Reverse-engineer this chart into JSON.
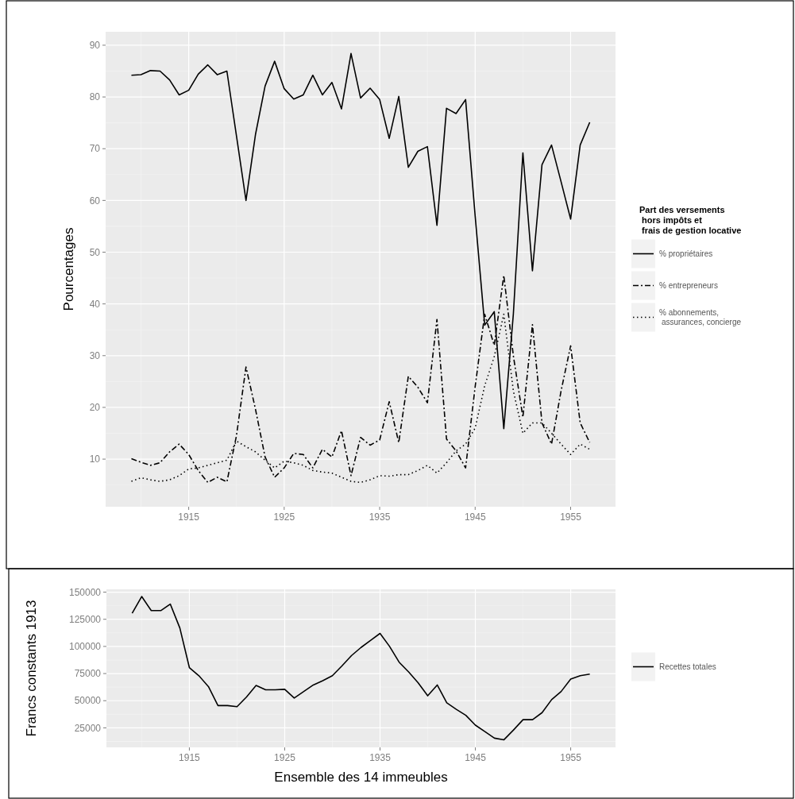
{
  "chart_data": [
    {
      "type": "line",
      "ylabel": "Pourcentages",
      "legend_title": "Part des versements\n hors impôts et\n frais de gestion locative",
      "legend": "right",
      "grid": true,
      "x": [
        1909,
        1910,
        1911,
        1912,
        1913,
        1914,
        1915,
        1916,
        1917,
        1918,
        1919,
        1920,
        1921,
        1922,
        1923,
        1924,
        1925,
        1926,
        1927,
        1928,
        1929,
        1930,
        1931,
        1932,
        1933,
        1934,
        1935,
        1936,
        1937,
        1938,
        1939,
        1940,
        1941,
        1942,
        1943,
        1944,
        1945,
        1946,
        1947,
        1948,
        1949,
        1950,
        1951,
        1952,
        1953,
        1954,
        1955,
        1956,
        1957
      ],
      "xlim": [
        1906.3,
        1959.7
      ],
      "xticks": [
        1915,
        1925,
        1935,
        1945,
        1955
      ],
      "ylim": [
        0.8,
        92.6
      ],
      "yticks": [
        10,
        20,
        30,
        40,
        50,
        60,
        70,
        80,
        90
      ],
      "series": [
        {
          "name": "% propriétaires",
          "color": "#000000",
          "line_style": "solid",
          "values": [
            84.2,
            84.3,
            85.1,
            85.0,
            83.3,
            80.4,
            81.3,
            84.4,
            86.2,
            84.3,
            85.0,
            72.5,
            60.0,
            72.8,
            82.1,
            86.9,
            81.6,
            79.6,
            80.4,
            84.2,
            80.4,
            82.8,
            77.7,
            88.4,
            79.8,
            81.7,
            79.5,
            72.0,
            80.1,
            66.4,
            69.5,
            70.4,
            55.2,
            77.8,
            76.8,
            79.5,
            57.0,
            35.9,
            38.5,
            15.9,
            38.0,
            69.2,
            46.4,
            66.9,
            70.7,
            63.6,
            56.4,
            70.7,
            75.1
          ]
        },
        {
          "name": "% entrepreneurs",
          "color": "#000000",
          "line_style": "dashed",
          "values": [
            10.1,
            9.4,
            8.8,
            9.3,
            11.4,
            12.9,
            10.9,
            7.8,
            5.5,
            6.5,
            5.6,
            14.5,
            27.8,
            19.6,
            10.4,
            6.5,
            8.3,
            11.1,
            10.9,
            8.3,
            11.9,
            10.4,
            15.5,
            6.8,
            14.2,
            12.7,
            13.7,
            21.1,
            13.2,
            26.0,
            23.9,
            20.9,
            37.0,
            13.9,
            11.6,
            8.3,
            24.0,
            38.0,
            32.0,
            45.5,
            30.0,
            18.1,
            36.0,
            17.0,
            12.9,
            23.2,
            31.9,
            17.0,
            13.2
          ]
        },
        {
          "name": "% abonnements,\nassurances, concierge",
          "color": "#000000",
          "line_style": "dotted",
          "values": [
            5.7,
            6.4,
            6.0,
            5.7,
            6.0,
            6.8,
            8.1,
            8.3,
            8.8,
            9.3,
            9.8,
            13.5,
            12.4,
            11.4,
            9.8,
            8.3,
            9.6,
            9.3,
            8.8,
            7.8,
            7.5,
            7.3,
            6.5,
            5.7,
            5.5,
            6.0,
            6.8,
            6.7,
            7.0,
            7.0,
            7.8,
            8.8,
            7.3,
            9.3,
            11.6,
            12.9,
            16.0,
            24.2,
            29.8,
            38.0,
            23.2,
            15.0,
            17.0,
            17.0,
            15.0,
            12.9,
            10.9,
            12.9,
            11.9
          ]
        }
      ]
    },
    {
      "type": "line",
      "xlabel": "Ensemble des 14 immeubles",
      "ylabel": "Francs constants 1913",
      "legend": "right",
      "grid": true,
      "x": [
        1909,
        1910,
        1911,
        1912,
        1913,
        1914,
        1915,
        1916,
        1917,
        1918,
        1919,
        1920,
        1921,
        1922,
        1923,
        1924,
        1925,
        1926,
        1927,
        1928,
        1929,
        1930,
        1931,
        1932,
        1933,
        1934,
        1935,
        1936,
        1937,
        1938,
        1939,
        1940,
        1941,
        1942,
        1943,
        1944,
        1945,
        1946,
        1947,
        1948,
        1949,
        1950,
        1951,
        1952,
        1953,
        1954,
        1955,
        1956,
        1957
      ],
      "xlim": [
        1906.3,
        1959.7
      ],
      "xticks": [
        1915,
        1925,
        1935,
        1945,
        1955
      ],
      "ylim": [
        7000,
        152600
      ],
      "yticks": [
        25000,
        50000,
        75000,
        100000,
        125000,
        150000
      ],
      "series": [
        {
          "name": "Recettes totales",
          "color": "#000000",
          "line_style": "solid",
          "values": [
            130500,
            146000,
            133000,
            133000,
            139000,
            117000,
            80500,
            73000,
            63000,
            45500,
            45500,
            44500,
            53500,
            64000,
            60000,
            60000,
            60500,
            52500,
            58500,
            64500,
            68500,
            73000,
            82000,
            91500,
            99000,
            105500,
            112000,
            100000,
            85500,
            76500,
            66500,
            54500,
            64500,
            48000,
            42000,
            36500,
            27500,
            21500,
            15500,
            14000,
            23000,
            32500,
            32500,
            39000,
            51000,
            58500,
            70000,
            73000,
            74500
          ]
        }
      ]
    }
  ]
}
